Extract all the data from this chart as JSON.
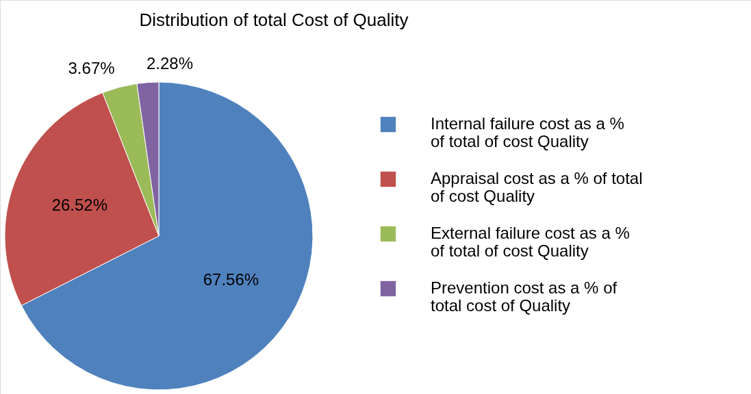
{
  "chart_data": {
    "type": "pie",
    "title": "Distribution of total Cost of Quality",
    "categories": [
      "Internal failure cost as a % of total of cost Quality",
      "Appraisal cost as a % of total of cost Quality",
      "External failure cost as a % of total of cost Quality",
      "Prevention cost as a % of total cost of Quality"
    ],
    "values": [
      67.56,
      26.52,
      3.67,
      2.28
    ],
    "colors": [
      "#4f81bd",
      "#c0504d",
      "#9bbb59",
      "#8064a2"
    ],
    "value_labels": [
      "67.56%",
      "26.52%",
      "3.67%",
      "2.28%"
    ],
    "legend": "right"
  }
}
